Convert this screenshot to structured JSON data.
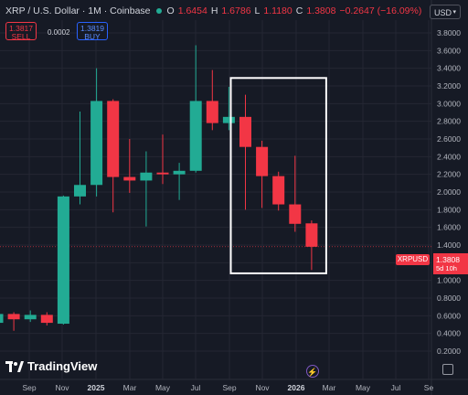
{
  "header": {
    "symbol": "XRP / U.S. Dollar · 1M · Coinbase",
    "o_label": "O",
    "o_value": "1.6454",
    "h_label": "H",
    "h_value": "1.6786",
    "l_label": "L",
    "l_value": "1.1180",
    "c_label": "C",
    "c_value": "1.3808",
    "change": "−0.2647 (−16.09%)"
  },
  "trade": {
    "sell_price": "1.3817",
    "sell_label": "SELL",
    "spread": "0.0002",
    "buy_price": "1.3819",
    "buy_label": "BUY"
  },
  "currency_selector": "USD",
  "price_tag": {
    "symbol": "XRPUSD",
    "price": "1.3808",
    "countdown": "5d 10h"
  },
  "branding": {
    "name": "TradingView"
  },
  "colors": {
    "up": "#22ab94",
    "down": "#f23645",
    "background": "#161a25",
    "grid": "#242733",
    "highlight_box": "#ffffff"
  },
  "chart_data": {
    "type": "candlestick",
    "interval": "1M",
    "y_range": [
      0.2,
      3.9
    ],
    "y_ticks": [
      "0.2000",
      "0.4000",
      "0.6000",
      "0.8000",
      "1.0000",
      "1.2000",
      "1.4000",
      "1.6000",
      "1.8000",
      "2.0000",
      "2.2000",
      "2.4000",
      "2.6000",
      "2.8000",
      "3.0000",
      "3.2000",
      "3.4000",
      "3.6000",
      "3.8000"
    ],
    "x_labels": [
      "Sep",
      "Nov",
      "2025",
      "Mar",
      "May",
      "Jul",
      "Sep",
      "Nov",
      "2026",
      "Mar",
      "May",
      "Jul",
      "Se"
    ],
    "candles": [
      {
        "month": "2024-07",
        "open": 0.52,
        "high": 0.64,
        "low": 0.47,
        "close": 0.62
      },
      {
        "month": "2024-08",
        "open": 0.62,
        "high": 0.64,
        "low": 0.43,
        "close": 0.56
      },
      {
        "month": "2024-09",
        "open": 0.56,
        "high": 0.66,
        "low": 0.53,
        "close": 0.61
      },
      {
        "month": "2024-10",
        "open": 0.61,
        "high": 0.64,
        "low": 0.49,
        "close": 0.52
      },
      {
        "month": "2024-11",
        "open": 0.51,
        "high": 1.96,
        "low": 0.5,
        "close": 1.95
      },
      {
        "month": "2024-12",
        "open": 1.95,
        "high": 2.91,
        "low": 1.86,
        "close": 2.08
      },
      {
        "month": "2025-01",
        "open": 2.08,
        "high": 3.4,
        "low": 1.95,
        "close": 3.03
      },
      {
        "month": "2025-02",
        "open": 3.03,
        "high": 3.05,
        "low": 1.77,
        "close": 2.17
      },
      {
        "month": "2025-03",
        "open": 2.17,
        "high": 2.6,
        "low": 1.99,
        "close": 2.13
      },
      {
        "month": "2025-04",
        "open": 2.13,
        "high": 2.46,
        "low": 1.61,
        "close": 2.22
      },
      {
        "month": "2025-05",
        "open": 2.22,
        "high": 2.65,
        "low": 2.09,
        "close": 2.2
      },
      {
        "month": "2025-06",
        "open": 2.2,
        "high": 2.33,
        "low": 1.91,
        "close": 2.24
      },
      {
        "month": "2025-07",
        "open": 2.24,
        "high": 3.66,
        "low": 2.22,
        "close": 3.03
      },
      {
        "month": "2025-08",
        "open": 3.03,
        "high": 3.38,
        "low": 2.7,
        "close": 2.78
      },
      {
        "month": "2025-09",
        "open": 2.78,
        "high": 3.19,
        "low": 2.7,
        "close": 2.85
      },
      {
        "month": "2025-10",
        "open": 2.85,
        "high": 3.1,
        "low": 1.8,
        "close": 2.51
      },
      {
        "month": "2025-11",
        "open": 2.51,
        "high": 2.58,
        "low": 1.82,
        "close": 2.18
      },
      {
        "month": "2025-12",
        "open": 2.18,
        "high": 2.23,
        "low": 1.79,
        "close": 1.86
      },
      {
        "month": "2026-01",
        "open": 1.86,
        "high": 2.41,
        "low": 1.55,
        "close": 1.64
      },
      {
        "month": "2026-02",
        "open": 1.6454,
        "high": 1.6786,
        "low": 1.118,
        "close": 1.3808
      }
    ],
    "current_price": 1.3808,
    "annotation": {
      "type": "rectangle",
      "from_month": "2025-10",
      "to_month": "2026-02",
      "top": 3.29,
      "bottom": 1.08
    }
  }
}
